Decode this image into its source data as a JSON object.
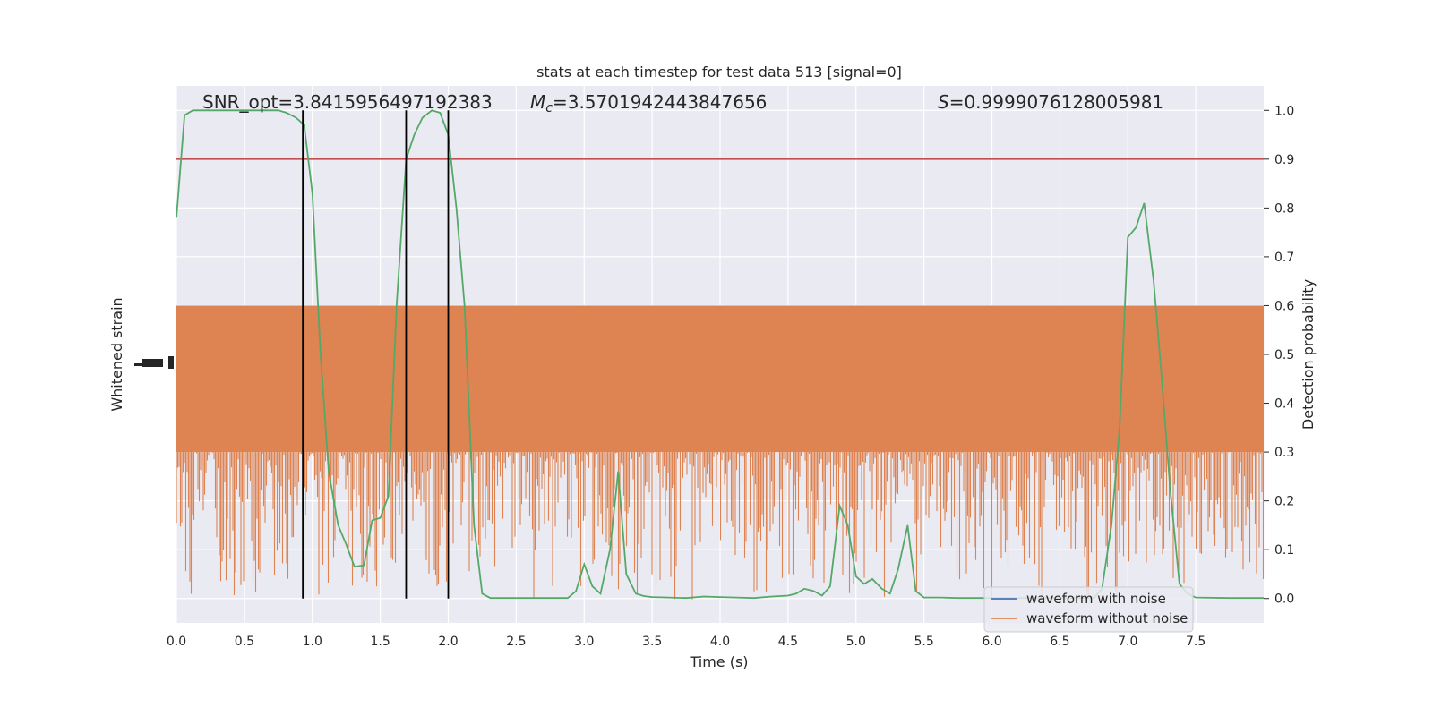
{
  "chart_data": {
    "type": "line",
    "title": "stats at each timestep for test data 513 [signal=0]",
    "xlabel": "Time (s)",
    "ylabel_left": "Whitened strain",
    "ylabel_right": "Detection probability",
    "xlim": [
      0.0,
      8.0
    ],
    "ylim_right": [
      -0.05,
      1.05
    ],
    "x_ticks": [
      "0.0",
      "0.5",
      "1.0",
      "1.5",
      "2.0",
      "2.5",
      "3.0",
      "3.5",
      "4.0",
      "4.5",
      "5.0",
      "5.5",
      "6.0",
      "6.5",
      "7.0",
      "7.5"
    ],
    "y_ticks_right": [
      "0.0",
      "0.1",
      "0.2",
      "0.3",
      "0.4",
      "0.5",
      "0.6",
      "0.7",
      "0.8",
      "0.9",
      "1.0"
    ],
    "grid": true,
    "legend_position": "lower-right",
    "annotations": {
      "snr": "SNR_opt=3.8415956497192383",
      "mc_symbol": "M",
      "mc_sub": "c",
      "mc_value": "=3.5701942443847656",
      "s_symbol": "S",
      "s_value": "=0.9999076128005981"
    },
    "threshold": 0.9,
    "vertical_markers": [
      0.93,
      1.69,
      2.0
    ],
    "series": [
      {
        "name": "waveform with noise",
        "color": "#4c72b0"
      },
      {
        "name": "waveform without noise",
        "color": "#dd8452"
      }
    ],
    "probability": {
      "color": "#55a868",
      "x": [
        0.0,
        0.06,
        0.12,
        0.19,
        0.25,
        0.31,
        0.38,
        0.44,
        0.5,
        0.56,
        0.62,
        0.69,
        0.75,
        0.81,
        0.88,
        0.94,
        1.0,
        1.06,
        1.12,
        1.19,
        1.25,
        1.31,
        1.38,
        1.44,
        1.5,
        1.56,
        1.62,
        1.69,
        1.75,
        1.81,
        1.88,
        1.94,
        2.0,
        2.06,
        2.12,
        2.19,
        2.25,
        2.31,
        2.38,
        2.5,
        2.62,
        2.75,
        2.88,
        2.94,
        3.0,
        3.06,
        3.12,
        3.19,
        3.25,
        3.31,
        3.38,
        3.44,
        3.5,
        3.62,
        3.75,
        3.88,
        4.0,
        4.12,
        4.25,
        4.38,
        4.5,
        4.56,
        4.62,
        4.69,
        4.75,
        4.81,
        4.88,
        4.94,
        5.0,
        5.06,
        5.12,
        5.19,
        5.25,
        5.31,
        5.38,
        5.44,
        5.5,
        5.62,
        5.75,
        5.88,
        6.0,
        6.25,
        6.5,
        6.75,
        6.81,
        6.88,
        6.94,
        7.0,
        7.06,
        7.12,
        7.19,
        7.25,
        7.31,
        7.38,
        7.44,
        7.5,
        7.75,
        8.0
      ],
      "y": [
        0.78,
        0.99,
        1.0,
        1.0,
        1.0,
        1.0,
        1.0,
        1.0,
        1.0,
        1.0,
        1.0,
        1.0,
        1.0,
        0.995,
        0.985,
        0.97,
        0.83,
        0.5,
        0.26,
        0.15,
        0.11,
        0.065,
        0.068,
        0.16,
        0.165,
        0.21,
        0.6,
        0.9,
        0.95,
        0.985,
        1.0,
        0.995,
        0.95,
        0.8,
        0.6,
        0.15,
        0.01,
        0.001,
        0.001,
        0.001,
        0.001,
        0.001,
        0.001,
        0.015,
        0.07,
        0.025,
        0.01,
        0.1,
        0.26,
        0.05,
        0.01,
        0.005,
        0.003,
        0.002,
        0.001,
        0.004,
        0.003,
        0.002,
        0.001,
        0.004,
        0.006,
        0.01,
        0.02,
        0.015,
        0.006,
        0.025,
        0.19,
        0.15,
        0.045,
        0.03,
        0.04,
        0.02,
        0.01,
        0.06,
        0.15,
        0.015,
        0.002,
        0.002,
        0.001,
        0.001,
        0.001,
        0.001,
        0.001,
        0.001,
        0.02,
        0.15,
        0.35,
        0.74,
        0.76,
        0.81,
        0.65,
        0.45,
        0.23,
        0.03,
        0.01,
        0.002,
        0.001,
        0.001
      ]
    },
    "strain_band": {
      "upper": 0.6,
      "lower": 0.3
    }
  }
}
